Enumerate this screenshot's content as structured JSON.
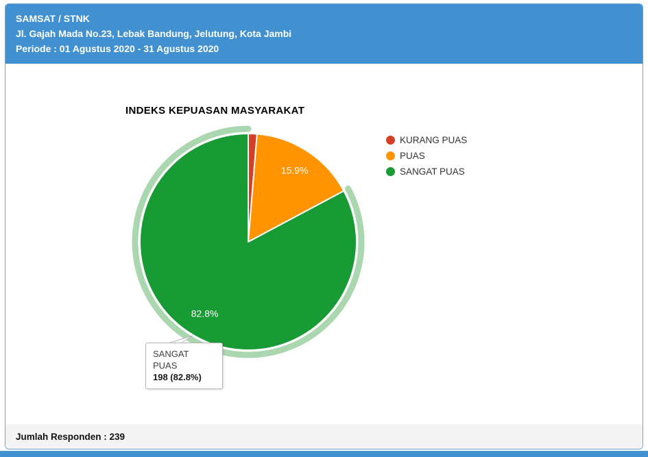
{
  "header": {
    "title": "SAMSAT / STNK",
    "address": "Jl. Gajah Mada No.23, Lebak Bandung, Jelutung, Kota Jambi",
    "period": "Periode : 01 Agustus 2020 - 31 Agustus 2020"
  },
  "chart_data": {
    "type": "pie",
    "title": "INDEKS KEPUASAN MASYARAKAT",
    "legend_position": "right",
    "total": 239,
    "slices": [
      {
        "label": "KURANG PUAS",
        "percent": 1.3,
        "color": "#d43f25",
        "data_label": "",
        "highlighted": false
      },
      {
        "label": "PUAS",
        "percent": 15.9,
        "color": "#ff9400",
        "data_label": "15.9%",
        "highlighted": false
      },
      {
        "label": "SANGAT PUAS",
        "percent": 82.8,
        "color": "#189a34",
        "data_label": "82.8%",
        "highlighted": true
      }
    ]
  },
  "tooltip": {
    "title": "SANGAT PUAS",
    "value_text": "198 (82.8%)"
  },
  "footer": {
    "respondents_label": "Jumlah Responden : 239"
  },
  "colors": {
    "header_bg": "#4190cf",
    "card_border": "#68a4d9",
    "footer_bg": "#f4f4f4",
    "halo": "#abd7b0",
    "bottom_bar": "#4190cf"
  }
}
